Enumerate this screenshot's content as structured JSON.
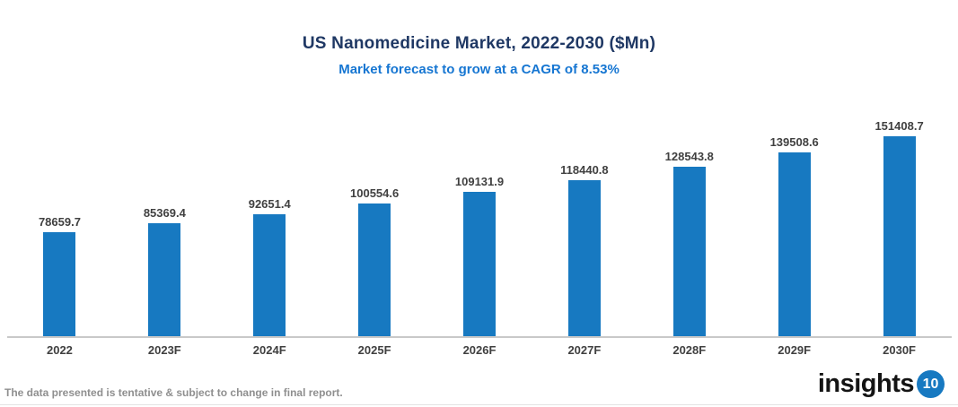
{
  "header": {
    "title": "US Nanomedicine Market, 2022-2030 ($Mn)",
    "subtitle": "Market forecast to grow at a CAGR of 8.53%"
  },
  "chart_data": {
    "type": "bar",
    "title": "US Nanomedicine Market, 2022-2030 ($Mn)",
    "subtitle": "Market forecast to grow at a CAGR of 8.53%",
    "categories": [
      "2022",
      "2023F",
      "2024F",
      "2025F",
      "2026F",
      "2027F",
      "2028F",
      "2029F",
      "2030F"
    ],
    "values": [
      78659.7,
      85369.4,
      92651.4,
      100554.6,
      109131.9,
      118440.8,
      128543.8,
      139508.6,
      151408.7
    ],
    "value_labels": [
      "78659.7",
      "85369.4",
      "92651.4",
      "100554.6",
      "109131.9",
      "118440.8",
      "128543.8",
      "139508.6",
      "151408.7"
    ],
    "xlabel": "",
    "ylabel": "",
    "ylim": [
      0,
      151408.7
    ],
    "grid": false,
    "legend": false,
    "y_axis_visible": false,
    "bar_color": "#1779c1",
    "baseline_color": "#c9c9c9"
  },
  "footer": {
    "note": "The data presented is tentative & subject to change in final report.",
    "logo_text": "insights",
    "logo_badge": "10",
    "logo_badge_color": "#1779c1"
  },
  "colors": {
    "title": "#1f3864",
    "subtitle": "#1676d2",
    "value_label": "#404040",
    "axis_label": "#404040",
    "footnote": "#8f8f8f"
  }
}
